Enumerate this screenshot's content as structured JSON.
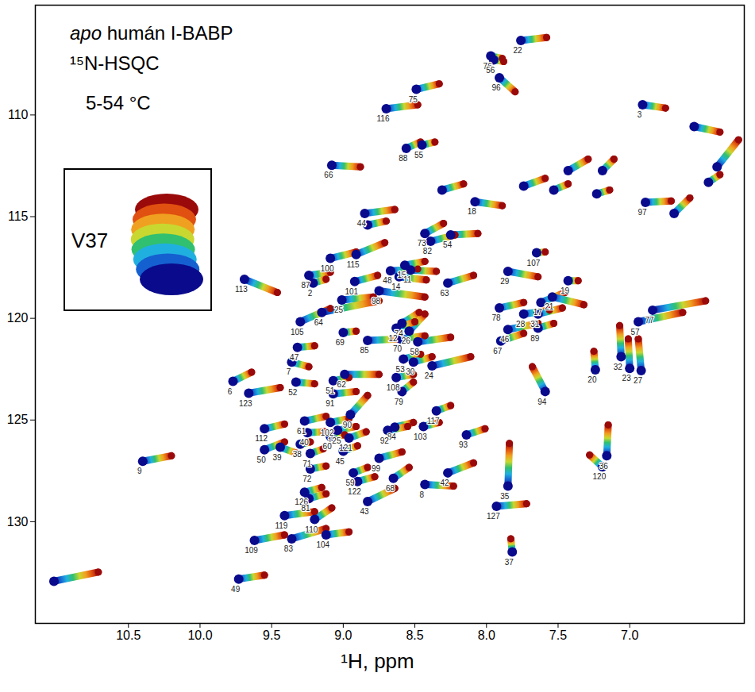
{
  "chart_data": {
    "type": "scatter",
    "title": "apo humán I-BABP",
    "subtitle": "¹⁵N-HSQC",
    "annotations": [
      "5-54 °C",
      "V37"
    ],
    "x_label": "¹H, ppm",
    "xlim": [
      11.15,
      6.2
    ],
    "ylim": [
      104.6,
      135
    ],
    "xticks": [
      10.5,
      {
        "value": 10,
        "label": "10.0"
      },
      9.5,
      {
        "value": 9,
        "label": "9.0"
      },
      8.5,
      {
        "value": 8,
        "label": "8.0"
      },
      7.5,
      {
        "value": 7,
        "label": "7.0"
      }
    ],
    "yticks": [
      110,
      115,
      120,
      125,
      130
    ],
    "colors": [
      "#0a0a8c",
      "#1560d0",
      "#20b0e0",
      "#30c070",
      "#c8d830",
      "#f0a020",
      "#e05010",
      "#9a0a0a"
    ],
    "peaks": [
      {
        "label": "22",
        "x": [
          7.76,
          7.58
        ],
        "y": [
          106.34,
          106.19
        ]
      },
      {
        "label": "76",
        "x": [
          7.97,
          7.89
        ],
        "y": [
          107.1,
          107.22
        ]
      },
      {
        "label": "56",
        "x": [
          7.95,
          7.88
        ],
        "y": [
          107.29,
          107.37
        ]
      },
      {
        "label": "96",
        "x": [
          7.91,
          7.8
        ],
        "y": [
          108.17,
          108.86
        ]
      },
      {
        "label": "75",
        "x": [
          8.49,
          8.33
        ],
        "y": [
          108.74,
          108.47
        ]
      },
      {
        "label": "3",
        "x": [
          6.91,
          6.75
        ],
        "y": [
          109.5,
          109.66
        ]
      },
      {
        "label": "116",
        "x": [
          8.7,
          8.48
        ],
        "y": [
          109.69,
          109.5
        ]
      },
      {
        "label": "88",
        "x": [
          8.56,
          8.46
        ],
        "y": [
          111.64,
          111.33
        ]
      },
      {
        "label": "55",
        "x": [
          8.45,
          8.36
        ],
        "y": [
          111.48,
          111.33
        ]
      },
      {
        "label": "66",
        "x": [
          9.08,
          8.88
        ],
        "y": [
          112.47,
          112.55
        ]
      },
      {
        "label": "18",
        "x": [
          8.08,
          7.89
        ],
        "y": [
          114.27,
          114.46
        ]
      },
      {
        "label": "97",
        "x": [
          6.89,
          6.71
        ],
        "y": [
          114.3,
          114.23
        ]
      },
      {
        "label": "44",
        "x": [
          8.85,
          8.64
        ],
        "y": [
          114.84,
          114.65
        ]
      },
      {
        "label": "73",
        "x": [
          8.43,
          8.3
        ],
        "y": [
          115.83,
          115.33
        ]
      },
      {
        "label": "54",
        "x": [
          8.25,
          8.06
        ],
        "y": [
          115.9,
          115.83
        ]
      },
      {
        "label": "82",
        "x": [
          8.39,
          8.22
        ],
        "y": [
          116.21,
          115.9
        ]
      },
      {
        "label": "115",
        "x": [
          8.91,
          8.71
        ],
        "y": [
          116.86,
          116.28
        ]
      },
      {
        "label": "107",
        "x": [
          7.65,
          7.59
        ],
        "y": [
          116.78,
          116.74
        ]
      },
      {
        "label": "100",
        "x": [
          9.09,
          8.91
        ],
        "y": [
          117.05,
          116.74
        ]
      },
      {
        "label": "48",
        "x": [
          8.67,
          8.48
        ],
        "y": [
          117.66,
          117.58
        ]
      },
      {
        "label": "15",
        "x": [
          8.57,
          8.43
        ],
        "y": [
          117.39,
          117.2
        ]
      },
      {
        "label": "11",
        "x": [
          8.53,
          8.35
        ],
        "y": [
          117.62,
          117.69
        ]
      },
      {
        "label": "87",
        "x": [
          9.24,
          9.09
        ],
        "y": [
          117.89,
          117.73
        ]
      },
      {
        "label": "101",
        "x": [
          8.92,
          8.76
        ],
        "y": [
          118.19,
          117.89
        ]
      },
      {
        "label": "14",
        "x": [
          8.61,
          8.42
        ],
        "y": [
          117.96,
          118.11
        ]
      },
      {
        "label": "63",
        "x": [
          8.27,
          8.09
        ],
        "y": [
          118.27,
          117.89
        ]
      },
      {
        "label": "29",
        "x": [
          7.85,
          7.64
        ],
        "y": [
          117.69,
          117.96
        ]
      },
      {
        "label": "19",
        "x": [
          7.43,
          7.36
        ],
        "y": [
          118.15,
          118.15
        ]
      },
      {
        "label": "113",
        "x": [
          9.69,
          9.46
        ],
        "y": [
          118.08,
          118.73
        ]
      },
      {
        "label": "2",
        "x": [
          9.21,
          9.12
        ],
        "y": [
          118.27,
          118.08
        ]
      },
      {
        "label": "98",
        "x": [
          8.75,
          8.43
        ],
        "y": [
          118.65,
          118.95
        ]
      },
      {
        "label": "25",
        "x": [
          9.01,
          8.79
        ],
        "y": [
          119.1,
          118.95
        ]
      },
      {
        "label": "17",
        "x": [
          7.62,
          7.45
        ],
        "y": [
          119.22,
          118.72
        ]
      },
      {
        "label": "77",
        "x": [
          6.84,
          6.47
        ],
        "y": [
          119.6,
          119.14
        ]
      },
      {
        "label": "57",
        "x": [
          6.94,
          6.63
        ],
        "y": [
          120.17,
          119.71
        ]
      },
      {
        "label": "105",
        "x": [
          9.3,
          9.09
        ],
        "y": [
          120.17,
          119.52
        ]
      },
      {
        "label": "64",
        "x": [
          9.15,
          8.75
        ],
        "y": [
          119.71,
          119.14
        ]
      },
      {
        "label": "74",
        "x": [
          8.59,
          8.47
        ],
        "y": [
          120.25,
          119.71
        ]
      },
      {
        "label": "26",
        "x": [
          8.54,
          8.43
        ],
        "y": [
          120.63,
          119.79
        ]
      },
      {
        "label": "78",
        "x": [
          7.91,
          7.74
        ],
        "y": [
          119.49,
          119.22
        ]
      },
      {
        "label": "28",
        "x": [
          7.74,
          7.56
        ],
        "y": [
          119.79,
          119.6
        ]
      },
      {
        "label": "31",
        "x": [
          7.64,
          7.47
        ],
        "y": [
          119.79,
          119.49
        ]
      },
      {
        "label": "21",
        "x": [
          7.54,
          7.32
        ],
        "y": [
          118.95,
          119.33
        ]
      },
      {
        "label": "47",
        "x": [
          9.32,
          9.2
        ],
        "y": [
          121.43,
          121.35
        ]
      },
      {
        "label": "12",
        "x": [
          8.63,
          8.5
        ],
        "y": [
          120.48,
          120.17
        ]
      },
      {
        "label": "70",
        "x": [
          8.6,
          8.43
        ],
        "y": [
          121.01,
          120.86
        ]
      },
      {
        "label": "69",
        "x": [
          9.0,
          8.91
        ],
        "y": [
          120.7,
          120.63
        ]
      },
      {
        "label": "85",
        "x": [
          8.83,
          8.59
        ],
        "y": [
          121.09,
          121.01
        ]
      },
      {
        "label": "58",
        "x": [
          8.48,
          8.25
        ],
        "y": [
          121.16,
          120.93
        ]
      },
      {
        "label": "46",
        "x": [
          7.85,
          7.64
        ],
        "y": [
          120.55,
          120.25
        ]
      },
      {
        "label": "89",
        "x": [
          7.64,
          7.53
        ],
        "y": [
          120.48,
          120.25
        ]
      },
      {
        "label": "67",
        "x": [
          7.9,
          7.74
        ],
        "y": [
          121.12,
          120.74
        ]
      },
      {
        "label": "32",
        "x": [
          7.06,
          7.07
        ],
        "y": [
          121.89,
          120.36
        ]
      },
      {
        "label": "23",
        "x": [
          7.0,
          7.01
        ],
        "y": [
          122.46,
          121.01
        ]
      },
      {
        "label": "20",
        "x": [
          7.24,
          7.25
        ],
        "y": [
          122.53,
          121.62
        ]
      },
      {
        "label": "27",
        "x": [
          6.92,
          6.94
        ],
        "y": [
          122.57,
          121.01
        ]
      },
      {
        "label": "24",
        "x": [
          8.38,
          8.11
        ],
        "y": [
          122.34,
          121.89
        ]
      },
      {
        "label": "53",
        "x": [
          8.58,
          8.46
        ],
        "y": [
          122.0,
          121.77
        ]
      },
      {
        "label": "30",
        "x": [
          8.51,
          8.38
        ],
        "y": [
          122.15,
          121.89
        ]
      },
      {
        "label": "7",
        "x": [
          9.36,
          9.24
        ],
        "y": [
          122.15,
          122.38
        ]
      },
      {
        "label": "6",
        "x": [
          9.77,
          9.64
        ],
        "y": [
          123.1,
          122.65
        ]
      },
      {
        "label": "52",
        "x": [
          9.33,
          9.2
        ],
        "y": [
          123.14,
          123.22
        ]
      },
      {
        "label": "51",
        "x": [
          9.07,
          8.96
        ],
        "y": [
          123.07,
          122.91
        ]
      },
      {
        "label": "62",
        "x": [
          8.99,
          8.75
        ],
        "y": [
          122.76,
          122.76
        ]
      },
      {
        "label": "108",
        "x": [
          8.63,
          8.51
        ],
        "y": [
          122.91,
          122.76
        ]
      },
      {
        "label": "123",
        "x": [
          9.66,
          9.44
        ],
        "y": [
          123.68,
          123.41
        ]
      },
      {
        "label": "91",
        "x": [
          9.07,
          8.91
        ],
        "y": [
          123.71,
          123.6
        ]
      },
      {
        "label": "79",
        "x": [
          8.59,
          8.51
        ],
        "y": [
          123.6,
          123.14
        ]
      },
      {
        "label": "94",
        "x": [
          7.59,
          7.68
        ],
        "y": [
          123.6,
          122.38
        ]
      },
      {
        "label": "61",
        "x": [
          9.27,
          9.12
        ],
        "y": [
          125.05,
          124.82
        ]
      },
      {
        "label": "90",
        "x": [
          8.95,
          8.83
        ],
        "y": [
          124.74,
          123.79
        ]
      },
      {
        "label": "102",
        "x": [
          9.09,
          8.96
        ],
        "y": [
          125.12,
          124.93
        ]
      },
      {
        "label": "117",
        "x": [
          8.35,
          8.25
        ],
        "y": [
          124.55,
          124.29
        ]
      },
      {
        "label": "84",
        "x": [
          8.64,
          8.51
        ],
        "y": [
          125.35,
          125.12
        ]
      },
      {
        "label": "125",
        "x": [
          9.04,
          8.91
        ],
        "y": [
          125.51,
          125.32
        ]
      },
      {
        "label": "103",
        "x": [
          8.44,
          8.33
        ],
        "y": [
          125.32,
          125.12
        ]
      },
      {
        "label": "92",
        "x": [
          8.69,
          8.55
        ],
        "y": [
          125.51,
          125.32
        ]
      },
      {
        "label": "93",
        "x": [
          8.14,
          8.01
        ],
        "y": [
          125.73,
          125.43
        ]
      },
      {
        "label": "112",
        "x": [
          9.55,
          9.41
        ],
        "y": [
          125.43,
          125.2
        ]
      },
      {
        "label": "40",
        "x": [
          9.25,
          9.13
        ],
        "y": [
          125.62,
          125.58
        ]
      },
      {
        "label": "60",
        "x": [
          9.09,
          8.99
        ],
        "y": [
          125.81,
          125.73
        ]
      },
      {
        "label": "121",
        "x": [
          8.96,
          8.84
        ],
        "y": [
          125.89,
          125.58
        ]
      },
      {
        "label": "36",
        "x": [
          7.16,
          7.15
        ],
        "y": [
          126.76,
          125.24
        ]
      },
      {
        "label": "120",
        "x": [
          7.19,
          7.28
        ],
        "y": [
          127.3,
          126.72
        ]
      },
      {
        "label": "50",
        "x": [
          9.55,
          9.41
        ],
        "y": [
          126.46,
          126.08
        ]
      },
      {
        "label": "39",
        "x": [
          9.44,
          9.32
        ],
        "y": [
          126.34,
          126.65
        ]
      },
      {
        "label": "38",
        "x": [
          9.3,
          9.23
        ],
        "y": [
          126.19,
          126.08
        ]
      },
      {
        "label": "71",
        "x": [
          9.23,
          9.14
        ],
        "y": [
          126.65,
          126.42
        ]
      },
      {
        "label": "45",
        "x": [
          9.0,
          8.9
        ],
        "y": [
          126.53,
          126.27
        ]
      },
      {
        "label": "99",
        "x": [
          8.75,
          8.59
        ],
        "y": [
          126.88,
          126.57
        ]
      },
      {
        "label": "35",
        "x": [
          7.85,
          7.84
        ],
        "y": [
          128.25,
          126.15
        ]
      },
      {
        "label": "72",
        "x": [
          9.23,
          9.12
        ],
        "y": [
          127.41,
          127.26
        ]
      },
      {
        "label": "59",
        "x": [
          8.93,
          8.83
        ],
        "y": [
          127.6,
          127.33
        ]
      },
      {
        "label": "42",
        "x": [
          8.27,
          8.09
        ],
        "y": [
          127.6,
          127.11
        ]
      },
      {
        "label": "8",
        "x": [
          8.43,
          8.23
        ],
        "y": [
          128.17,
          128.25
        ]
      },
      {
        "label": "68",
        "x": [
          8.65,
          8.54
        ],
        "y": [
          127.87,
          127.33
        ]
      },
      {
        "label": "126",
        "x": [
          9.27,
          9.15
        ],
        "y": [
          128.55,
          128.32
        ]
      },
      {
        "label": "122",
        "x": [
          8.9,
          8.78
        ],
        "y": [
          128.02,
          127.79
        ]
      },
      {
        "label": "127",
        "x": [
          7.93,
          7.72
        ],
        "y": [
          129.24,
          129.12
        ]
      },
      {
        "label": "43",
        "x": [
          8.83,
          8.64
        ],
        "y": [
          129.01,
          128.36
        ]
      },
      {
        "label": "81",
        "x": [
          9.24,
          9.12
        ],
        "y": [
          128.86,
          128.63
        ]
      },
      {
        "label": "119",
        "x": [
          9.41,
          9.2
        ],
        "y": [
          129.7,
          129.51
        ]
      },
      {
        "label": "110",
        "x": [
          9.2,
          9.08
        ],
        "y": [
          129.89,
          129.32
        ]
      },
      {
        "label": "83",
        "x": [
          9.36,
          9.12
        ],
        "y": [
          130.84,
          130.34
        ]
      },
      {
        "label": "109",
        "x": [
          9.62,
          9.41
        ],
        "y": [
          130.92,
          130.65
        ]
      },
      {
        "label": "104",
        "x": [
          9.12,
          8.96
        ],
        "y": [
          130.65,
          130.5
        ]
      },
      {
        "label": "37",
        "x": [
          7.82,
          7.83
        ],
        "y": [
          131.49,
          130.84
        ]
      },
      {
        "label": "49",
        "x": [
          9.73,
          9.55
        ],
        "y": [
          132.82,
          132.63
        ]
      },
      {
        "label": "9",
        "x": [
          10.4,
          10.2
        ],
        "y": [
          127.03,
          126.76
        ]
      },
      {
        "label": null,
        "x": [
          6.39,
          6.24
        ],
        "y": [
          112.55,
          111.22
        ]
      },
      {
        "label": null,
        "x": [
          7.43,
          7.29
        ],
        "y": [
          112.74,
          112.17
        ]
      },
      {
        "label": null,
        "x": [
          7.19,
          7.11
        ],
        "y": [
          112.74,
          112.17
        ]
      },
      {
        "label": null,
        "x": [
          7.74,
          7.59
        ],
        "y": [
          113.5,
          113.12
        ]
      },
      {
        "label": null,
        "x": [
          7.53,
          7.43
        ],
        "y": [
          113.69,
          113.39
        ]
      },
      {
        "label": null,
        "x": [
          7.23,
          7.14
        ],
        "y": [
          113.88,
          113.69
        ]
      },
      {
        "label": null,
        "x": [
          6.45,
          6.37
        ],
        "y": [
          113.31,
          112.93
        ]
      },
      {
        "label": null,
        "x": [
          6.69,
          6.58
        ],
        "y": [
          114.84,
          114.08
        ]
      },
      {
        "label": null,
        "x": [
          8.31,
          8.16
        ],
        "y": [
          113.69,
          113.39
        ]
      },
      {
        "label": null,
        "x": [
          8.83,
          8.7
        ],
        "y": [
          115.41,
          115.22
        ]
      },
      {
        "label": null,
        "x": [
          11.02,
          10.71
        ],
        "y": [
          132.93,
          132.48
        ]
      },
      {
        "label": null,
        "x": [
          6.55,
          6.37
        ],
        "y": [
          110.57,
          110.84
        ]
      }
    ]
  }
}
